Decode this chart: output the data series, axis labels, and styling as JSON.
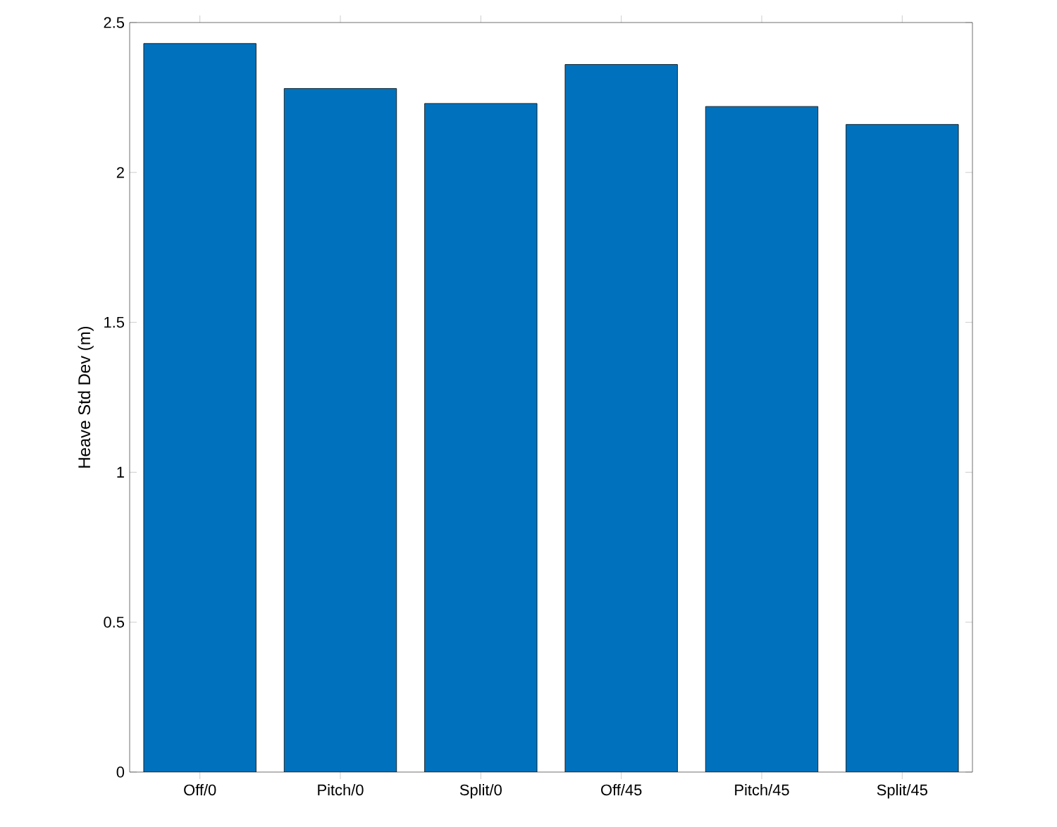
{
  "chart_data": {
    "type": "bar",
    "ylabel": "Heave Std Dev (m)",
    "categories": [
      "Off/0",
      "Pitch/0",
      "Split/0",
      "Off/45",
      "Pitch/45",
      "Split/45"
    ],
    "values": [
      2.43,
      2.28,
      2.23,
      2.36,
      2.22,
      2.16
    ],
    "color": "#0072bd",
    "ylim": [
      0,
      2.5
    ],
    "yticks": [
      0,
      0.5,
      1,
      1.5,
      2,
      2.5
    ]
  }
}
